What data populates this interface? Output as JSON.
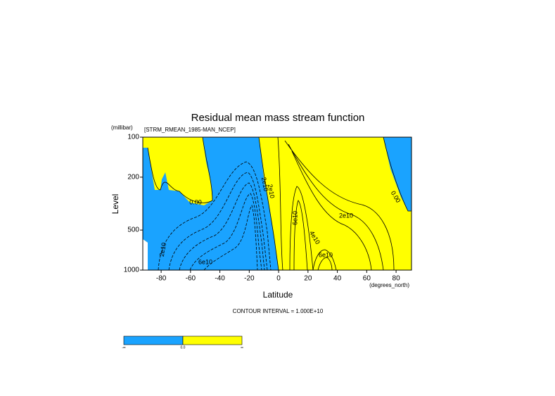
{
  "chart_data": {
    "type": "contour",
    "title": "Residual mean mass stream function",
    "subtitle": "[STRM_RMEAN_1985-MAN_NCEP]",
    "y_unit": "(millibar)",
    "y_label": "Level",
    "x_label": "Latitude",
    "x_unit": "(degrees_north)",
    "footnote": "CONTOUR INTERVAL = 1.000E+10",
    "xlim": [
      -92.5,
      90.5
    ],
    "xticks": [
      -80,
      -60,
      -40,
      -20,
      0,
      20,
      40,
      60,
      80
    ],
    "ylim": [
      1000,
      100
    ],
    "yticks": [
      100,
      200,
      500,
      1000
    ],
    "y_log": true,
    "fill_colors": [
      "#1aa3ff",
      "#ffff00"
    ],
    "colorbar_labels": [
      "-∞",
      "0.0",
      "∞"
    ],
    "annotations": [
      "0.00",
      "0.00",
      "2e10",
      "6e10",
      "2e10",
      "6e10",
      "4e10",
      "2e10",
      "6e10",
      "2e10"
    ]
  }
}
